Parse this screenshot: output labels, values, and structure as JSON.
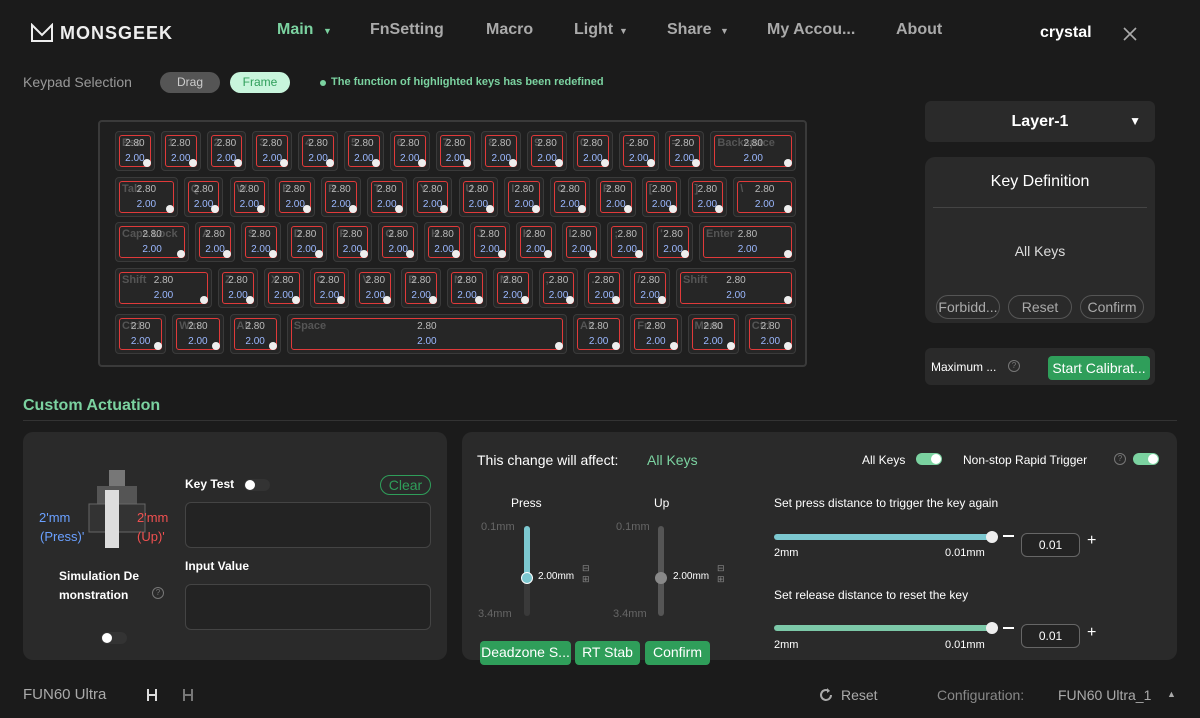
{
  "nav": {
    "logo": "MONSGEEK",
    "items": [
      "Main",
      "FnSetting",
      "Macro",
      "Light",
      "Share",
      "My Accou...",
      "About"
    ],
    "user": "crystal"
  },
  "keypad": {
    "label": "Keypad Selection",
    "modes": [
      "Drag",
      "Frame"
    ],
    "notice": "The function of highlighted keys has been redefined"
  },
  "keyboard": {
    "rows": [
      [
        {
          "legend": "Esc",
          "press": "2.80",
          "release": "2.00"
        },
        {
          "legend": "1",
          "press": "2.80",
          "release": "2.00"
        },
        {
          "legend": "2",
          "press": "2.80",
          "release": "2.00"
        },
        {
          "legend": "3",
          "press": "2.80",
          "release": "2.00"
        },
        {
          "legend": "4",
          "press": "2.80",
          "release": "2.00"
        },
        {
          "legend": "5",
          "press": "2.80",
          "release": "2.00"
        },
        {
          "legend": "6",
          "press": "2.80",
          "release": "2.00"
        },
        {
          "legend": "7",
          "press": "2.80",
          "release": "2.00"
        },
        {
          "legend": "8",
          "press": "2.80",
          "release": "2.00"
        },
        {
          "legend": "9",
          "press": "2.80",
          "release": "2.00"
        },
        {
          "legend": "0",
          "press": "2.80",
          "release": "2.00"
        },
        {
          "legend": "-",
          "press": "2.80",
          "release": "2.00"
        },
        {
          "legend": "=",
          "press": "2.80",
          "release": "2.00"
        },
        {
          "legend": "Backspace",
          "press": "2.80",
          "release": "2.00"
        }
      ],
      [
        {
          "legend": "Tab",
          "press": "2.80",
          "release": "2.00"
        },
        {
          "legend": "Q",
          "press": "2.80",
          "release": "2.00"
        },
        {
          "legend": "W",
          "press": "2.80",
          "release": "2.00"
        },
        {
          "legend": "E",
          "press": "2.80",
          "release": "2.00"
        },
        {
          "legend": "R",
          "press": "2.80",
          "release": "2.00"
        },
        {
          "legend": "T",
          "press": "2.80",
          "release": "2.00"
        },
        {
          "legend": "Y",
          "press": "2.80",
          "release": "2.00"
        },
        {
          "legend": "U",
          "press": "2.80",
          "release": "2.00"
        },
        {
          "legend": "I",
          "press": "2.80",
          "release": "2.00"
        },
        {
          "legend": "O",
          "press": "2.80",
          "release": "2.00"
        },
        {
          "legend": "P",
          "press": "2.80",
          "release": "2.00"
        },
        {
          "legend": "[",
          "press": "2.80",
          "release": "2.00"
        },
        {
          "legend": "]",
          "press": "2.80",
          "release": "2.00"
        },
        {
          "legend": "\\",
          "press": "2.80",
          "release": "2.00"
        }
      ],
      [
        {
          "legend": "Caps Lock",
          "press": "2.80",
          "release": "2.00"
        },
        {
          "legend": "A",
          "press": "2.80",
          "release": "2.00"
        },
        {
          "legend": "S",
          "press": "2.80",
          "release": "2.00"
        },
        {
          "legend": "D",
          "press": "2.80",
          "release": "2.00"
        },
        {
          "legend": "F",
          "press": "2.80",
          "release": "2.00"
        },
        {
          "legend": "G",
          "press": "2.80",
          "release": "2.00"
        },
        {
          "legend": "H",
          "press": "2.80",
          "release": "2.00"
        },
        {
          "legend": "J",
          "press": "2.80",
          "release": "2.00"
        },
        {
          "legend": "K",
          "press": "2.80",
          "release": "2.00"
        },
        {
          "legend": "L",
          "press": "2.80",
          "release": "2.00"
        },
        {
          "legend": ";",
          "press": "2.80",
          "release": "2.00"
        },
        {
          "legend": "'",
          "press": "2.80",
          "release": "2.00"
        },
        {
          "legend": "Enter",
          "press": "2.80",
          "release": "2.00"
        }
      ],
      [
        {
          "legend": "Shift",
          "press": "2.80",
          "release": "2.00"
        },
        {
          "legend": "Z",
          "press": "2.80",
          "release": "2.00"
        },
        {
          "legend": "X",
          "press": "2.80",
          "release": "2.00"
        },
        {
          "legend": "C",
          "press": "2.80",
          "release": "2.00"
        },
        {
          "legend": "V",
          "press": "2.80",
          "release": "2.00"
        },
        {
          "legend": "B",
          "press": "2.80",
          "release": "2.00"
        },
        {
          "legend": "N",
          "press": "2.80",
          "release": "2.00"
        },
        {
          "legend": "M",
          "press": "2.80",
          "release": "2.00"
        },
        {
          "legend": ",",
          "press": "2.80",
          "release": "2.00"
        },
        {
          "legend": ".",
          "press": "2.80",
          "release": "2.00"
        },
        {
          "legend": "/",
          "press": "2.80",
          "release": "2.00"
        },
        {
          "legend": "Shift",
          "press": "2.80",
          "release": "2.00"
        }
      ],
      [
        {
          "legend": "Ctrl",
          "press": "2.80",
          "release": "2.00"
        },
        {
          "legend": "Win",
          "press": "2.80",
          "release": "2.00"
        },
        {
          "legend": "Alt",
          "press": "2.80",
          "release": "2.00"
        },
        {
          "legend": "Space",
          "press": "2.80",
          "release": "2.00"
        },
        {
          "legend": "Alt",
          "press": "2.80",
          "release": "2.00"
        },
        {
          "legend": "Fn",
          "press": "2.80",
          "release": "2.00"
        },
        {
          "legend": "Menu",
          "press": "2.80",
          "release": "2.00"
        },
        {
          "legend": "Ctrl",
          "press": "2.80",
          "release": "2.00"
        }
      ]
    ]
  },
  "layer": {
    "selected": "Layer-1"
  },
  "key_definition": {
    "title": "Key Definition",
    "selection": "All Keys",
    "buttons": [
      "Forbidd...",
      "Reset",
      "Confirm"
    ]
  },
  "calibration": {
    "label": "Maximum ...",
    "button": "Start Calibrat..."
  },
  "custom_actuation": {
    "title": "Custom Actuation",
    "simulation": {
      "press_value": "2'mm",
      "press_label": "(Press)'",
      "up_value": "2'mm",
      "up_label": "(Up)'",
      "title": "Simulation Demonstration"
    },
    "key_test": {
      "label": "Key Test",
      "clear": "Clear",
      "input_label": "Input Value"
    },
    "scope": {
      "label": "This change will affect:",
      "value": "All Keys",
      "all_keys": "All Keys",
      "rapid_trigger": "Non-stop Rapid Trigger"
    },
    "press": {
      "label": "Press",
      "min": "0.1mm",
      "max": "3.4mm",
      "value": "2.00mm"
    },
    "up": {
      "label": "Up",
      "min": "0.1mm",
      "max": "3.4mm",
      "value": "2.00mm"
    },
    "buttons": [
      "Deadzone S...",
      "RT Stab",
      "Confirm"
    ],
    "trigger": {
      "label": "Set press distance to trigger the key again",
      "min": "2mm",
      "max": "0.01mm",
      "value": "0.01"
    },
    "reset": {
      "label": "Set release distance to reset the key",
      "min": "2mm",
      "max": "0.01mm",
      "value": "0.01"
    }
  },
  "footer": {
    "device": "FUN60 Ultra",
    "reset": "Reset",
    "config_label": "Configuration:",
    "config_value": "FUN60 Ultra_1"
  }
}
